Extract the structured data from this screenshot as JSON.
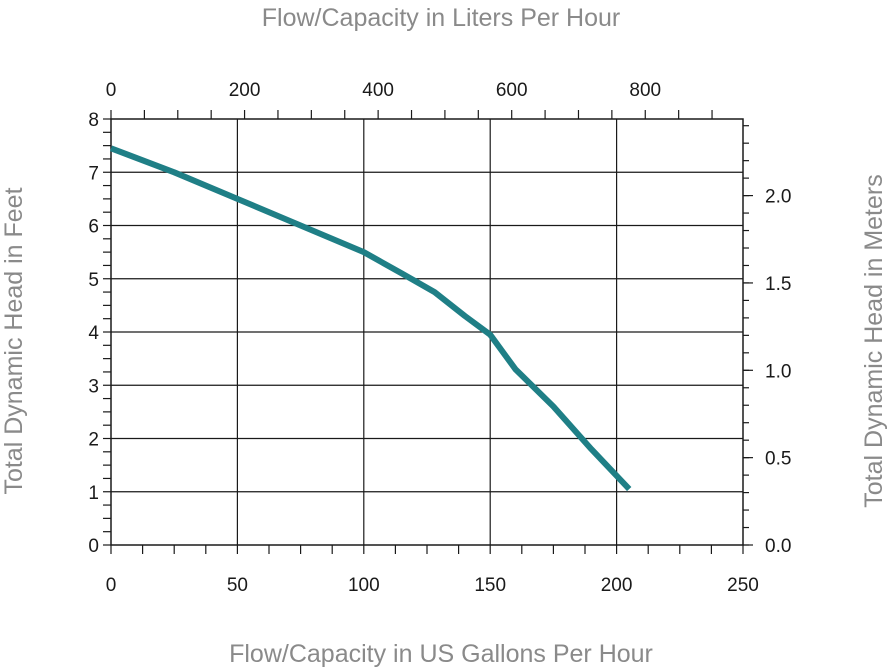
{
  "chart_data": {
    "type": "line",
    "title": "",
    "x_label_bottom": "Flow/Capacity in US Gallons Per Hour",
    "x_label_top": "Flow/Capacity in Liters Per Hour",
    "y_label_left": "Total Dynamic Head in Feet",
    "y_label_right": "Total Dynamic Head in Meters",
    "xlim": [
      0,
      250
    ],
    "ylim": [
      0,
      8
    ],
    "x_ticks_bottom": [
      "0",
      "50",
      "100",
      "150",
      "200",
      "250"
    ],
    "x_ticks_top": [
      "0",
      "200",
      "400",
      "600",
      "800"
    ],
    "y_ticks_left": [
      "0",
      "1",
      "2",
      "3",
      "4",
      "5",
      "6",
      "7",
      "8"
    ],
    "y_ticks_right": [
      "0.0",
      "0.5",
      "1.0",
      "1.5",
      "2.0"
    ],
    "grid": true,
    "line_color": "#1f7f86",
    "series": [
      {
        "x": [
          0,
          25,
          50,
          75,
          100,
          115,
          128,
          140,
          150,
          160,
          175,
          190,
          205
        ],
        "y": [
          7.45,
          7.0,
          6.5,
          6.0,
          5.5,
          5.1,
          4.75,
          4.3,
          3.95,
          3.3,
          2.6,
          1.8,
          1.05
        ]
      }
    ]
  }
}
